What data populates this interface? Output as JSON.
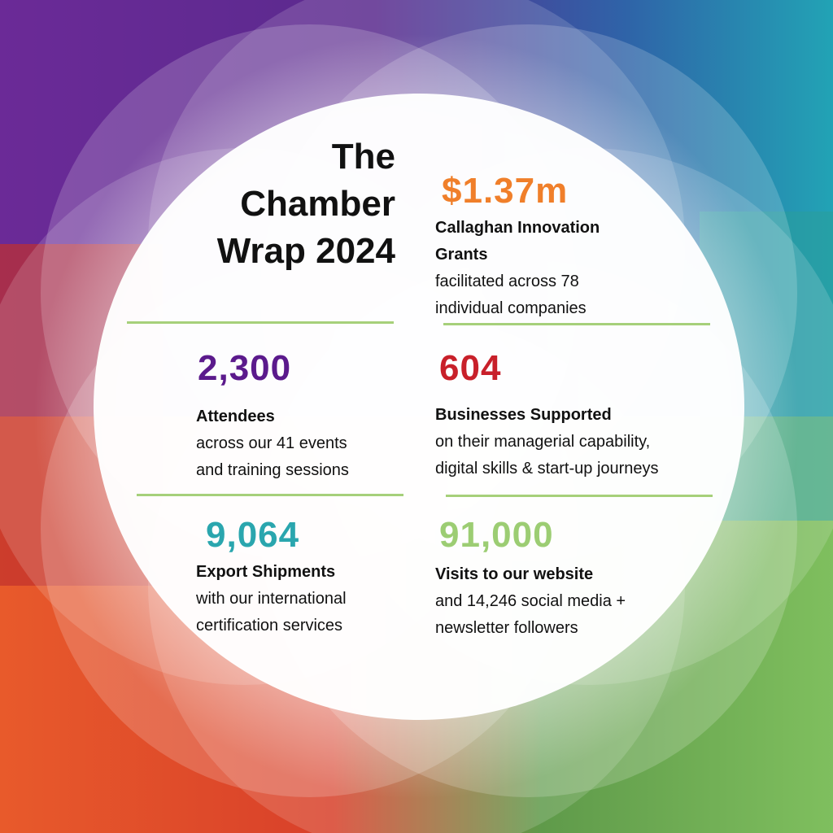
{
  "title": {
    "line1": "The",
    "line2": "Chamber",
    "line3": "Wrap 2024"
  },
  "colors": {
    "purple": "#5b1a8c",
    "orange": "#f07f2a",
    "red": "#c8202a",
    "teal": "#2aa6ae",
    "green": "#9ccd73",
    "divider": "#a6d07a"
  },
  "stats": {
    "grants": {
      "value": "$1.37m",
      "label_line1": "Callaghan Innovation",
      "label_line2": "Grants",
      "desc_line1": "facilitated across 78",
      "desc_line2": "individual companies"
    },
    "attendees": {
      "value": "2,300",
      "label": "Attendees",
      "desc_line1": "across our 41 events",
      "desc_line2": "and training sessions"
    },
    "businesses": {
      "value": "604",
      "label": "Businesses Supported",
      "desc_line1": "on their managerial capability,",
      "desc_line2": "digital skills & start-up journeys"
    },
    "exports": {
      "value": "9,064",
      "label": "Export Shipments",
      "desc_line1": "with our international",
      "desc_line2": "certification services"
    },
    "website": {
      "value": "91,000",
      "label": "Visits to our website",
      "desc_line1": "and 14,246 social media +",
      "desc_line2": "newsletter followers"
    }
  }
}
